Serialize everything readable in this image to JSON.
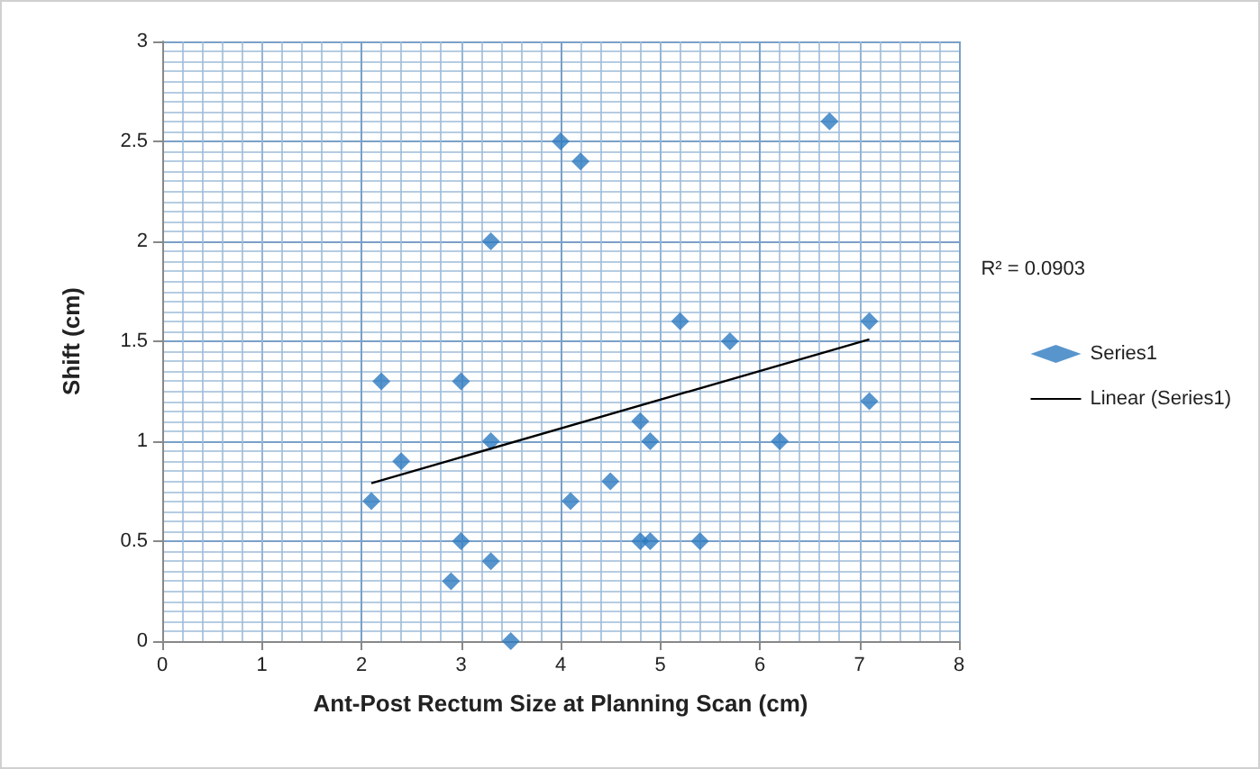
{
  "chart_data": {
    "type": "scatter",
    "xlabel": "Ant-Post Rectum Size at Planning Scan (cm)",
    "ylabel": "Shift (cm)",
    "xlim": [
      0,
      8
    ],
    "xticks": [
      0,
      1,
      2,
      3,
      4,
      5,
      6,
      7,
      8
    ],
    "ylim": [
      0,
      3
    ],
    "yticks": [
      0,
      0.5,
      1,
      1.5,
      2,
      2.5,
      3
    ],
    "grid": true,
    "legend": "right",
    "marker": "diamond",
    "annotations": [
      "R² = 0.0903"
    ],
    "series": [
      {
        "name": "Series1",
        "type": "scatter",
        "color": "#2e7bc0",
        "x": [
          2.2,
          2.4,
          2.1,
          3.0,
          3.0,
          2.9,
          3.3,
          3.3,
          3.3,
          3.5,
          4.0,
          4.2,
          4.1,
          4.5,
          4.8,
          4.9,
          4.8,
          4.9,
          5.2,
          5.4,
          5.7,
          6.2,
          6.7,
          7.1,
          7.1
        ],
        "values": [
          1.3,
          0.9,
          0.7,
          1.3,
          0.5,
          0.3,
          2.0,
          1.0,
          0.4,
          0.0,
          2.5,
          2.4,
          0.7,
          0.8,
          1.1,
          1.0,
          0.5,
          0.5,
          1.6,
          0.5,
          1.5,
          1.0,
          2.6,
          1.6,
          1.2
        ]
      },
      {
        "name": "Linear (Series1)",
        "type": "line",
        "color": "#000000",
        "marker": "none",
        "x": [
          2.1,
          7.1
        ],
        "values": [
          0.79,
          1.51
        ]
      }
    ]
  }
}
